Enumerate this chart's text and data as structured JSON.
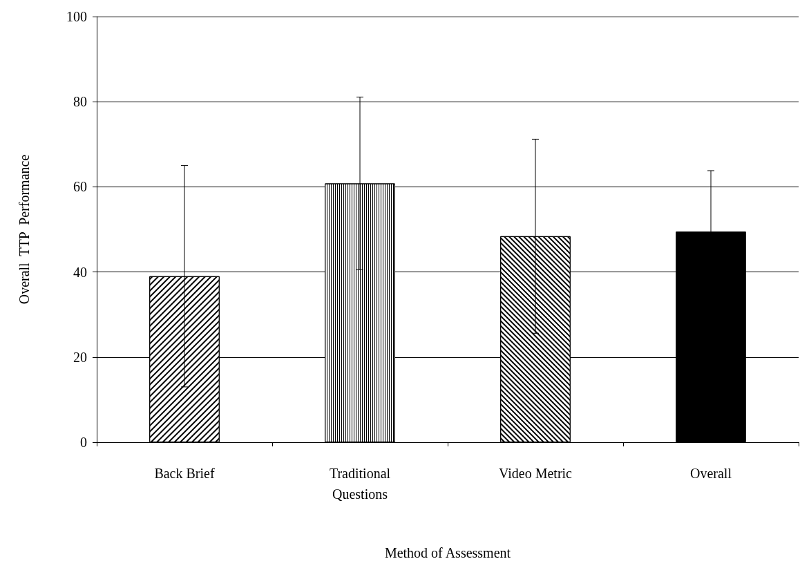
{
  "chart_data": {
    "type": "bar",
    "xlabel": "Method of Assessment",
    "ylabel": "Overall  TTP  Performance",
    "categories": [
      "Back Brief",
      "Traditional\nQuestions",
      "Video Metric",
      "Overall"
    ],
    "values": [
      39,
      60.8,
      48.4,
      49.5
    ],
    "errors": [
      26,
      20.3,
      22.8,
      14.3
    ],
    "colors": [
      "#ffffff",
      "#ffffff",
      "#ffffff",
      "#000000"
    ],
    "ylim": [
      0,
      100
    ],
    "yticks": [
      0,
      20,
      40,
      60,
      80,
      100
    ],
    "grid": "y"
  }
}
